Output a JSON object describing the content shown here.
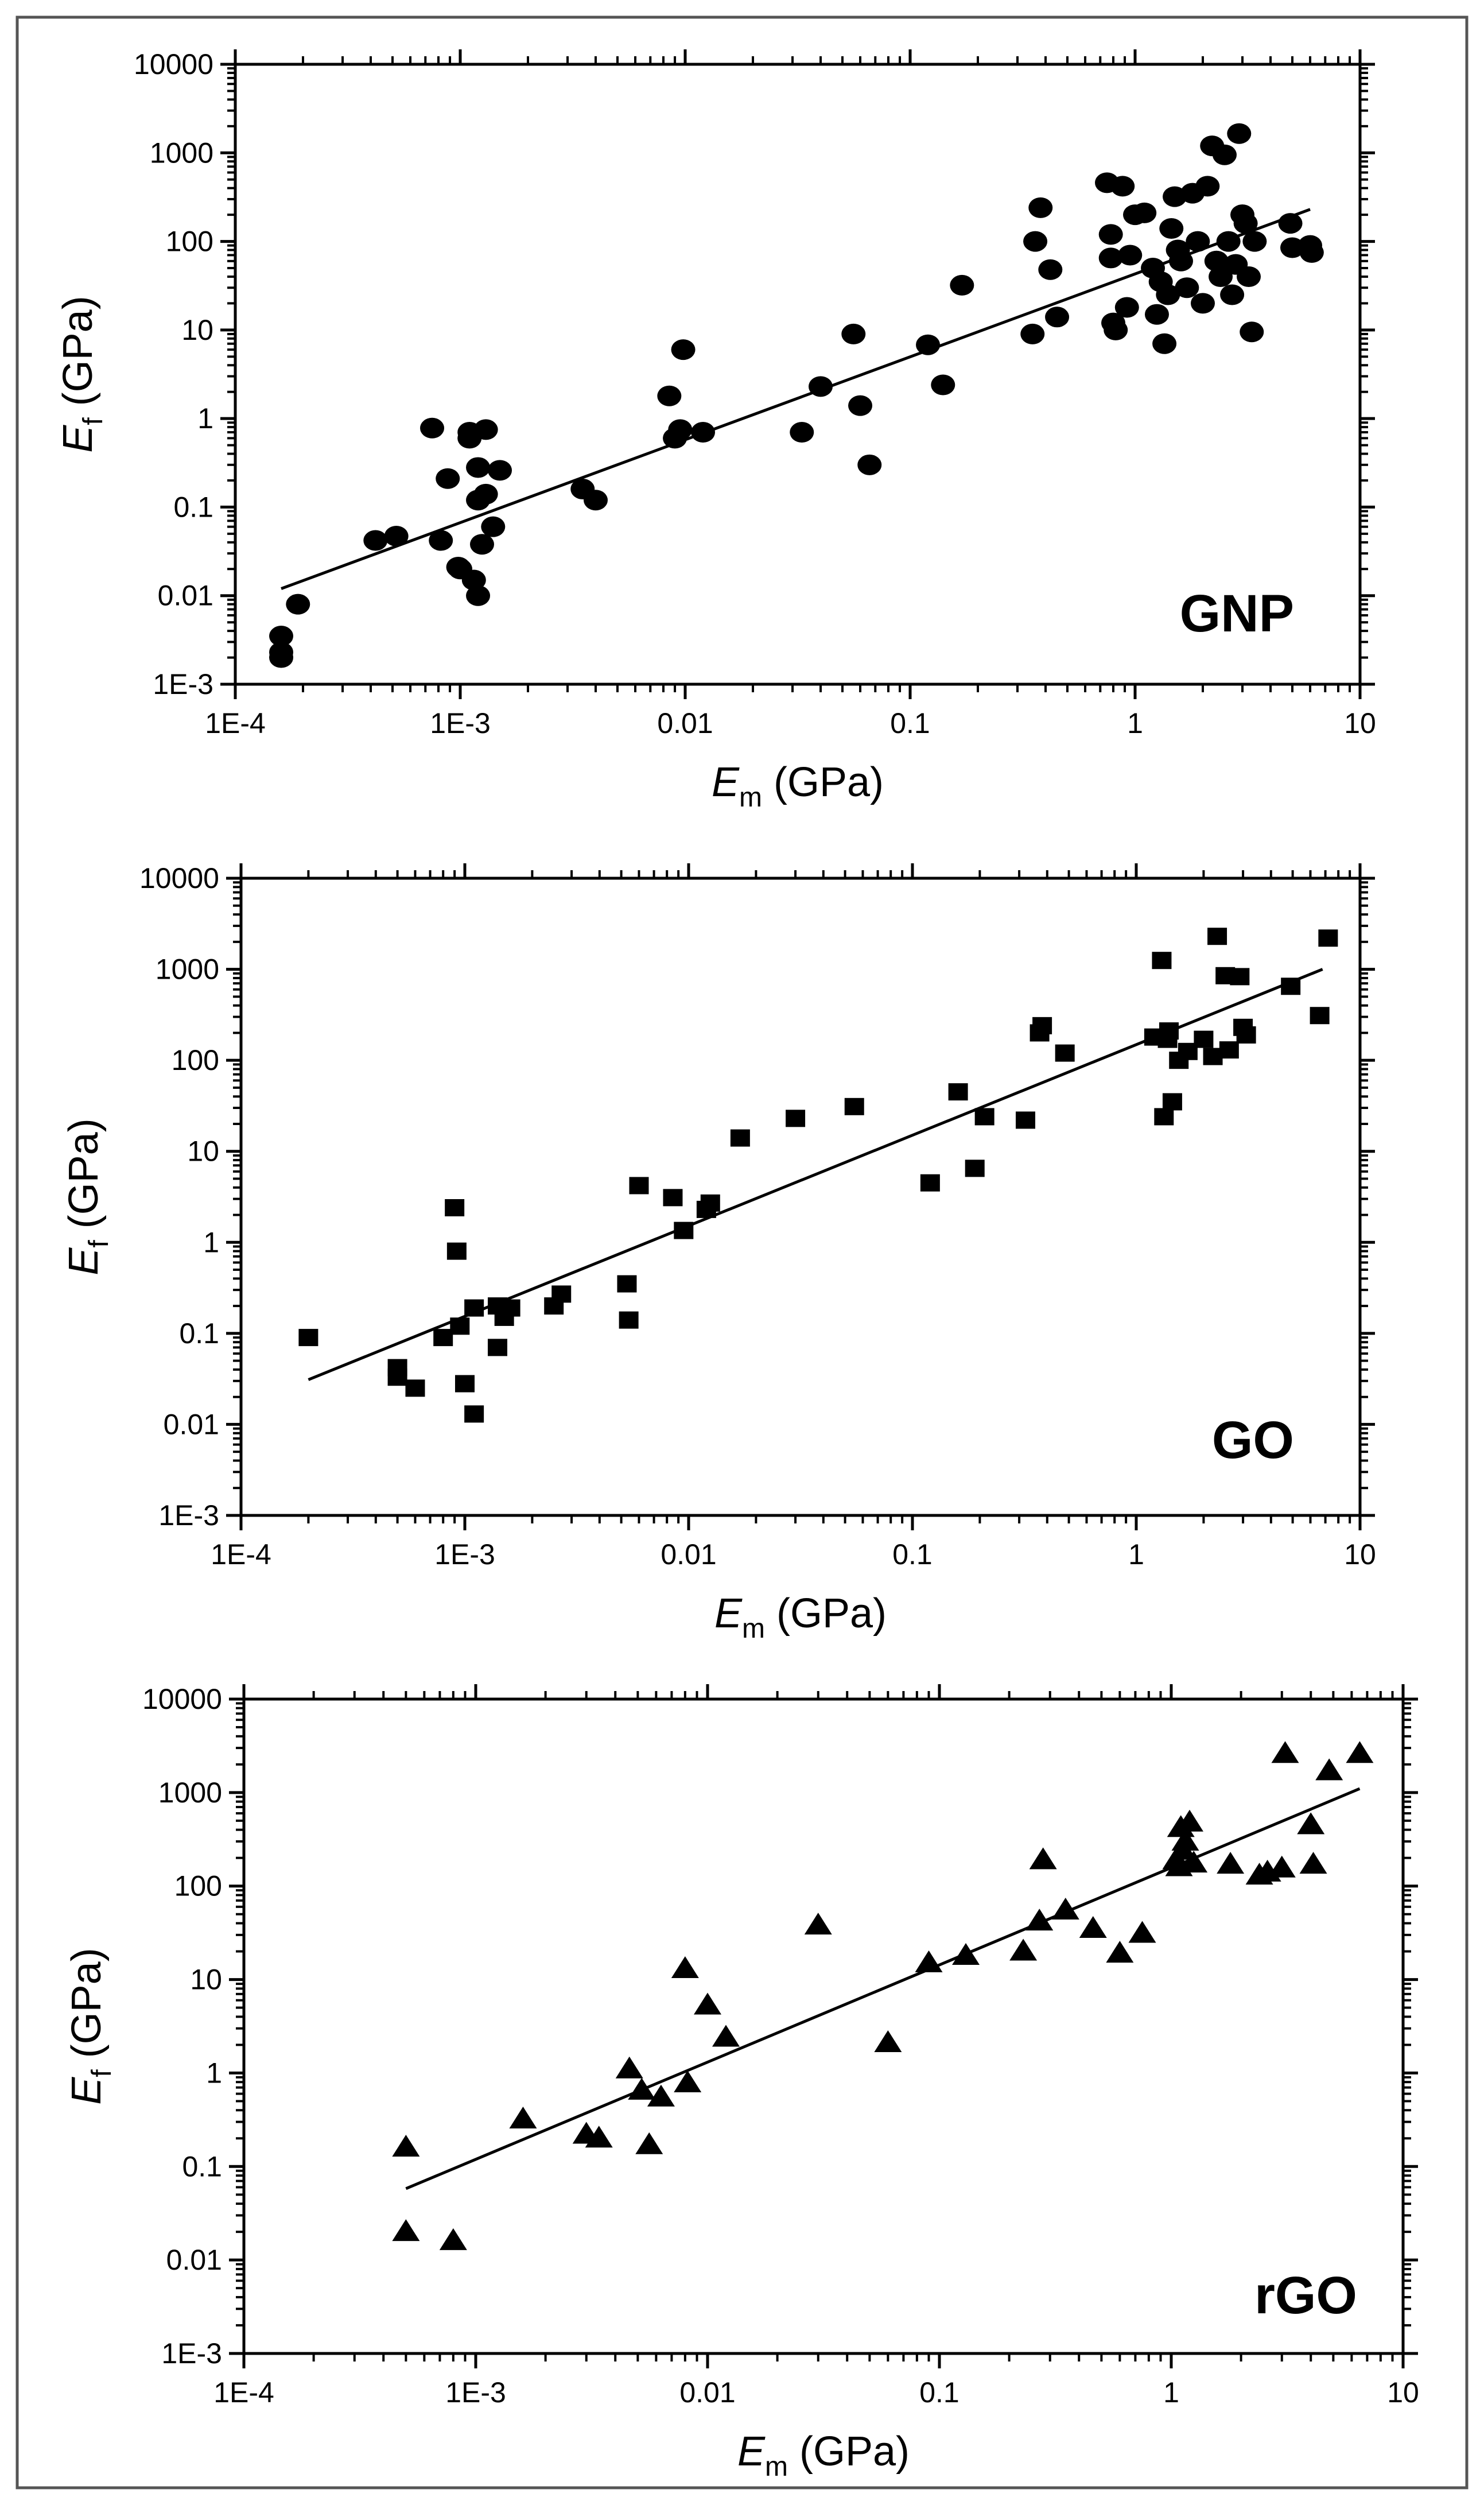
{
  "figure": {
    "x_tick_labels": [
      "1E-4",
      "1E-3",
      "0.01",
      "0.1",
      "1",
      "10"
    ],
    "y_tick_labels": [
      "1E-3",
      "0.01",
      "0.1",
      "1",
      "10",
      "100",
      "1000",
      "10000"
    ]
  },
  "chart_data": [
    {
      "type": "scatter",
      "panel_label": "GNP",
      "marker": "circle",
      "xscale": "log",
      "yscale": "log",
      "xlim": [
        0.0001,
        10
      ],
      "ylim": [
        0.001,
        10000
      ],
      "xlabel_main": "E",
      "xlabel_sub": "m",
      "xlabel_rest": " (GPa)",
      "ylabel_main": "E",
      "ylabel_sub": "f",
      "ylabel_rest": " (GPa)",
      "fit_line": [
        [
          0.00016,
          0.012
        ],
        [
          6.0,
          230
        ]
      ],
      "points": [
        [
          0.00016,
          0.002
        ],
        [
          0.00016,
          0.0023
        ],
        [
          0.00016,
          0.0035
        ],
        [
          0.00019,
          0.008
        ],
        [
          0.00042,
          0.042
        ],
        [
          0.00052,
          0.047
        ],
        [
          0.00075,
          0.78
        ],
        [
          0.00082,
          0.042
        ],
        [
          0.00088,
          0.21
        ],
        [
          0.00098,
          0.021
        ],
        [
          0.001,
          0.02
        ],
        [
          0.0011,
          0.6
        ],
        [
          0.0011,
          0.7
        ],
        [
          0.0012,
          0.28
        ],
        [
          0.0012,
          0.12
        ],
        [
          0.00115,
          0.015
        ],
        [
          0.0012,
          0.01
        ],
        [
          0.0013,
          0.75
        ],
        [
          0.0013,
          0.14
        ],
        [
          0.00125,
          0.038
        ],
        [
          0.0014,
          0.06
        ],
        [
          0.0015,
          0.26
        ],
        [
          0.0035,
          0.16
        ],
        [
          0.004,
          0.12
        ],
        [
          0.0085,
          1.8
        ],
        [
          0.009,
          0.6
        ],
        [
          0.0095,
          0.75
        ],
        [
          0.0098,
          6.0
        ],
        [
          0.012,
          0.7
        ],
        [
          0.033,
          0.7
        ],
        [
          0.04,
          2.3
        ],
        [
          0.056,
          9.0
        ],
        [
          0.06,
          1.4
        ],
        [
          0.066,
          0.3
        ],
        [
          0.12,
          6.8
        ],
        [
          0.14,
          2.4
        ],
        [
          0.17,
          32
        ],
        [
          0.35,
          9.0
        ],
        [
          0.36,
          100
        ],
        [
          0.38,
          240
        ],
        [
          0.42,
          48
        ],
        [
          0.45,
          14
        ],
        [
          0.75,
          460
        ],
        [
          0.78,
          120
        ],
        [
          0.78,
          65
        ],
        [
          0.8,
          12
        ],
        [
          0.82,
          10
        ],
        [
          0.88,
          420
        ],
        [
          0.92,
          18
        ],
        [
          0.95,
          70
        ],
        [
          1.0,
          200
        ],
        [
          1.1,
          210
        ],
        [
          1.2,
          50
        ],
        [
          1.25,
          15
        ],
        [
          1.3,
          35
        ],
        [
          1.35,
          7.0
        ],
        [
          1.4,
          25
        ],
        [
          1.45,
          140
        ],
        [
          1.5,
          320
        ],
        [
          1.55,
          80
        ],
        [
          1.6,
          60
        ],
        [
          1.7,
          30
        ],
        [
          1.8,
          350
        ],
        [
          1.9,
          100
        ],
        [
          2.0,
          20
        ],
        [
          2.1,
          420
        ],
        [
          2.2,
          1200
        ],
        [
          2.3,
          60
        ],
        [
          2.4,
          40
        ],
        [
          2.5,
          950
        ],
        [
          2.6,
          100
        ],
        [
          2.7,
          25
        ],
        [
          2.8,
          55
        ],
        [
          2.9,
          1650
        ],
        [
          3.0,
          200
        ],
        [
          3.1,
          160
        ],
        [
          3.2,
          40
        ],
        [
          3.3,
          9.5
        ],
        [
          3.4,
          100
        ],
        [
          4.9,
          160
        ],
        [
          5.0,
          85
        ],
        [
          6.0,
          90
        ],
        [
          6.1,
          75
        ]
      ]
    },
    {
      "type": "scatter",
      "panel_label": "GO",
      "marker": "square",
      "xscale": "log",
      "yscale": "log",
      "xlim": [
        0.0001,
        10
      ],
      "ylim": [
        0.001,
        10000
      ],
      "xlabel_main": "E",
      "xlabel_sub": "m",
      "xlabel_rest": " (GPa)",
      "ylabel_main": "E",
      "ylabel_sub": "f",
      "ylabel_rest": " (GPa)",
      "fit_line": [
        [
          0.0002,
          0.031
        ],
        [
          6.8,
          1000
        ]
      ],
      "points": [
        [
          0.0002,
          0.09
        ],
        [
          0.0005,
          0.042
        ],
        [
          0.0005,
          0.033
        ],
        [
          0.0006,
          0.025
        ],
        [
          0.0008,
          0.09
        ],
        [
          0.0009,
          2.4
        ],
        [
          0.00092,
          0.8
        ],
        [
          0.00095,
          0.12
        ],
        [
          0.001,
          0.028
        ],
        [
          0.0011,
          0.013
        ],
        [
          0.0011,
          0.19
        ],
        [
          0.0014,
          0.2
        ],
        [
          0.0014,
          0.07
        ],
        [
          0.0015,
          0.15
        ],
        [
          0.0016,
          0.19
        ],
        [
          0.0025,
          0.2
        ],
        [
          0.0027,
          0.27
        ],
        [
          0.0053,
          0.35
        ],
        [
          0.0054,
          0.14
        ],
        [
          0.006,
          4.2
        ],
        [
          0.0085,
          3.1
        ],
        [
          0.0095,
          1.35
        ],
        [
          0.012,
          2.3
        ],
        [
          0.0125,
          2.7
        ],
        [
          0.017,
          14
        ],
        [
          0.03,
          23
        ],
        [
          0.055,
          31
        ],
        [
          0.12,
          4.5
        ],
        [
          0.16,
          45
        ],
        [
          0.19,
          6.5
        ],
        [
          0.21,
          24
        ],
        [
          0.32,
          22
        ],
        [
          0.37,
          200
        ],
        [
          0.38,
          240
        ],
        [
          0.48,
          120
        ],
        [
          1.2,
          180
        ],
        [
          1.3,
          1250
        ],
        [
          1.33,
          24
        ],
        [
          1.38,
          170
        ],
        [
          1.4,
          210
        ],
        [
          1.45,
          35
        ],
        [
          1.55,
          100
        ],
        [
          1.7,
          125
        ],
        [
          2.0,
          170
        ],
        [
          2.2,
          110
        ],
        [
          2.3,
          2300
        ],
        [
          2.5,
          850
        ],
        [
          2.6,
          130
        ],
        [
          2.9,
          830
        ],
        [
          3.0,
          230
        ],
        [
          3.1,
          190
        ],
        [
          4.9,
          650
        ],
        [
          6.6,
          310
        ],
        [
          7.2,
          2200
        ]
      ]
    },
    {
      "type": "scatter",
      "panel_label": "rGO",
      "marker": "triangle",
      "xscale": "log",
      "yscale": "log",
      "xlim": [
        0.0001,
        10
      ],
      "ylim": [
        0.001,
        10000
      ],
      "xlabel_main": "E",
      "xlabel_sub": "m",
      "xlabel_rest": " (GPa)",
      "ylabel_main": "E",
      "ylabel_sub": "f",
      "ylabel_rest": " (GPa)",
      "fit_line": [
        [
          0.0005,
          0.058
        ],
        [
          6.5,
          1100
        ]
      ],
      "points": [
        [
          0.0005,
          0.16
        ],
        [
          0.0005,
          0.02
        ],
        [
          0.0008,
          0.016
        ],
        [
          0.0016,
          0.32
        ],
        [
          0.003,
          0.22
        ],
        [
          0.0034,
          0.2
        ],
        [
          0.0046,
          1.1
        ],
        [
          0.0052,
          0.65
        ],
        [
          0.0056,
          0.17
        ],
        [
          0.0063,
          0.55
        ],
        [
          0.008,
          13
        ],
        [
          0.0082,
          0.78
        ],
        [
          0.01,
          5.3
        ],
        [
          0.012,
          2.4
        ],
        [
          0.03,
          38
        ],
        [
          0.06,
          2.1
        ],
        [
          0.09,
          15
        ],
        [
          0.13,
          18
        ],
        [
          0.23,
          20
        ],
        [
          0.27,
          42
        ],
        [
          0.28,
          190
        ],
        [
          0.35,
          55
        ],
        [
          0.46,
          35
        ],
        [
          0.6,
          19
        ],
        [
          0.75,
          31
        ],
        [
          1.05,
          190
        ],
        [
          1.08,
          160
        ],
        [
          1.1,
          420
        ],
        [
          1.12,
          240
        ],
        [
          1.15,
          300
        ],
        [
          1.2,
          480
        ],
        [
          1.25,
          175
        ],
        [
          1.8,
          170
        ],
        [
          2.4,
          130
        ],
        [
          2.6,
          140
        ],
        [
          3.0,
          155
        ],
        [
          3.1,
          2600
        ],
        [
          4.0,
          450
        ],
        [
          4.1,
          170
        ],
        [
          4.8,
          1700
        ],
        [
          6.5,
          2600
        ]
      ]
    }
  ]
}
